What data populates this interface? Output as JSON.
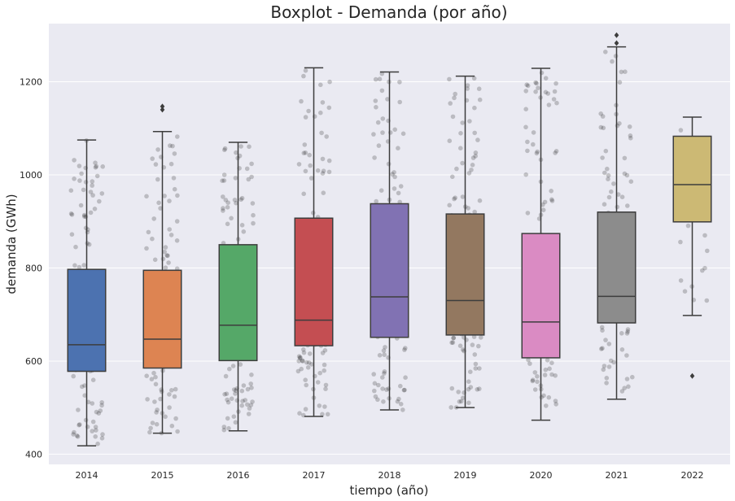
{
  "chart_data": {
    "type": "box",
    "title": "Boxplot - Demanda (por año)",
    "xlabel": "tiempo (año)",
    "ylabel": "demanda (GWh)",
    "ylim": [
      378,
      1325
    ],
    "yticks": [
      400,
      600,
      800,
      1000,
      1200
    ],
    "grid": true,
    "categories": [
      "2014",
      "2015",
      "2016",
      "2017",
      "2018",
      "2019",
      "2020",
      "2021",
      "2022"
    ],
    "boxes": [
      {
        "label": "2014",
        "whisker_low": 418,
        "q1": 578,
        "median": 635,
        "q3": 797,
        "whisker_high": 1075,
        "outliers": [],
        "color": "#4c72b0"
      },
      {
        "label": "2015",
        "whisker_low": 445,
        "q1": 585,
        "median": 647,
        "q3": 795,
        "whisker_high": 1093,
        "outliers": [
          1140,
          1147
        ],
        "color": "#dd8452"
      },
      {
        "label": "2016",
        "whisker_low": 450,
        "q1": 601,
        "median": 677,
        "q3": 850,
        "whisker_high": 1070,
        "outliers": [],
        "color": "#55a868"
      },
      {
        "label": "2017",
        "whisker_low": 481,
        "q1": 633,
        "median": 688,
        "q3": 907,
        "whisker_high": 1230,
        "outliers": [],
        "color": "#c44e52"
      },
      {
        "label": "2018",
        "whisker_low": 495,
        "q1": 651,
        "median": 738,
        "q3": 938,
        "whisker_high": 1221,
        "outliers": [],
        "color": "#8172b3"
      },
      {
        "label": "2019",
        "whisker_low": 500,
        "q1": 656,
        "median": 730,
        "q3": 916,
        "whisker_high": 1212,
        "outliers": [],
        "color": "#937860"
      },
      {
        "label": "2020",
        "whisker_low": 473,
        "q1": 607,
        "median": 684,
        "q3": 874,
        "whisker_high": 1229,
        "outliers": [],
        "color": "#da8bc3"
      },
      {
        "label": "2021",
        "whisker_low": 518,
        "q1": 682,
        "median": 739,
        "q3": 920,
        "whisker_high": 1275,
        "outliers": [
          1283,
          1300
        ],
        "color": "#8c8c8c"
      },
      {
        "label": "2022",
        "whisker_low": 698,
        "q1": 899,
        "median": 979,
        "q3": 1083,
        "whisker_high": 1124,
        "outliers": [
          568
        ],
        "color": "#ccb974"
      }
    ]
  }
}
